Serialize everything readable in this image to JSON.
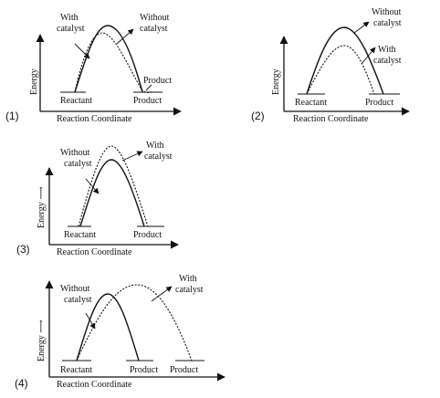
{
  "options": [
    {
      "number": "(1)",
      "y_label": "Energy",
      "x_label": "Reaction Coordinate",
      "label_with": "With\ncatalyst",
      "label_without": "Without\ncatalyst",
      "label_reactant": "Reactant",
      "label_product": "Product",
      "label_product2": "Product"
    },
    {
      "number": "(2)",
      "y_label": "Energy",
      "x_label": "Reaction Coordinate",
      "label_with": "With\ncatalyst",
      "label_without": "Without\ncatalyst",
      "label_reactant": "Reactant",
      "label_product": "Product"
    },
    {
      "number": "(3)",
      "y_label": "Energy ⟶",
      "x_label": "Reaction Coordinate",
      "label_with": "With\ncatalyst",
      "label_without": "Without\ncatalyst",
      "label_reactant": "Reactant",
      "label_product": "Product"
    },
    {
      "number": "(4)",
      "y_label": "Energy ⟶",
      "x_label": "Reaction Coordinate",
      "label_with": "With\ncatalyst",
      "label_without": "Without\ncatalyst",
      "label_reactant": "Reactant",
      "label_product": "Product",
      "label_product2": "Product"
    }
  ]
}
